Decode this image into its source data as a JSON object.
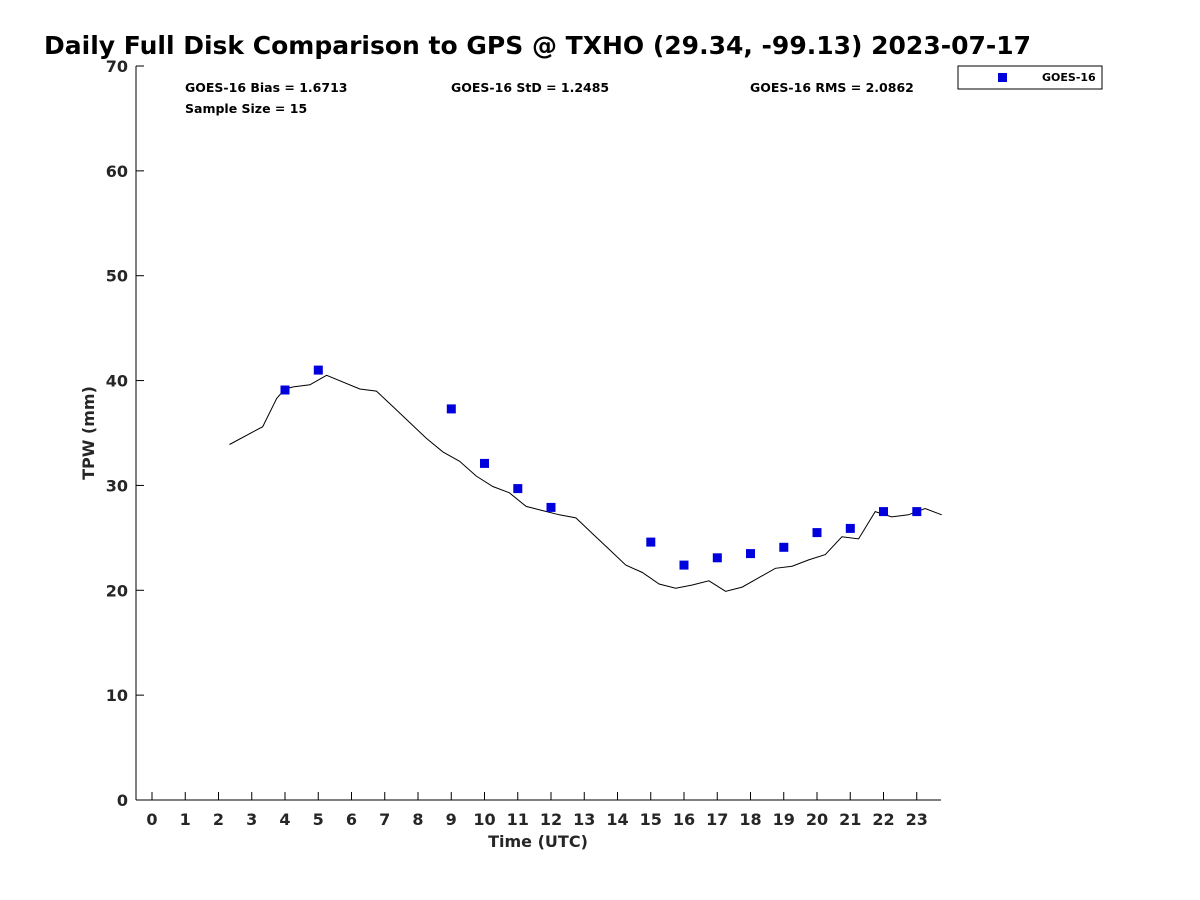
{
  "chart_data": {
    "type": "scatter",
    "title": "Daily Full Disk Comparison to GPS @ TXHO (29.34, -99.13) 2023-07-17",
    "xlabel": "Time (UTC)",
    "ylabel": "TPW (mm)",
    "xlim": [
      -0.5,
      23.75
    ],
    "ylim": [
      0,
      70
    ],
    "x_ticks": [
      "0",
      "1",
      "2",
      "3",
      "4",
      "5",
      "6",
      "7",
      "8",
      "9",
      "10",
      "11",
      "12",
      "13",
      "14",
      "15",
      "16",
      "17",
      "18",
      "19",
      "20",
      "21",
      "22",
      "23"
    ],
    "y_ticks": [
      "0",
      "10",
      "20",
      "30",
      "40",
      "50",
      "60",
      "70"
    ],
    "grid": false,
    "legend": {
      "placement": "top-right-outside",
      "entries": [
        "GOES-16"
      ]
    },
    "stats": {
      "bias": "GOES-16 Bias = 1.6713",
      "std": "GOES-16 StD = 1.2485",
      "rms": "GOES-16 RMS = 2.0862",
      "sample_size": "Sample Size = 15"
    },
    "series": [
      {
        "name": "GOES-16",
        "style": "scatter",
        "color": "#0000dd",
        "marker": "square",
        "x": [
          4,
          5,
          9,
          10,
          11,
          12,
          15,
          16,
          17,
          18,
          19,
          20,
          21,
          22,
          23
        ],
        "y": [
          39.1,
          41.0,
          37.3,
          32.1,
          29.7,
          27.9,
          24.6,
          22.4,
          23.1,
          23.5,
          24.1,
          25.5,
          25.9,
          27.5,
          27.5
        ]
      },
      {
        "style": "line",
        "color": "#000000",
        "x": [
          2.33,
          3.33,
          3.75,
          4.0,
          4.25,
          4.75,
          5.25,
          6.25,
          6.75,
          7.25,
          7.75,
          8.25,
          8.75,
          9.25,
          9.75,
          10.25,
          10.75,
          11.25,
          11.75,
          12.25,
          12.75,
          13.25,
          13.75,
          14.25,
          14.75,
          15.25,
          15.75,
          16.25,
          16.75,
          17.25,
          17.75,
          18.25,
          18.75,
          19.25,
          19.75,
          20.25,
          20.75,
          21.25,
          21.75,
          22.25,
          22.75,
          23.25,
          23.75
        ],
        "y": [
          33.9,
          35.6,
          38.3,
          39.2,
          39.4,
          39.6,
          40.5,
          39.2,
          39.0,
          37.5,
          36.0,
          34.5,
          33.2,
          32.3,
          30.9,
          29.9,
          29.3,
          28.0,
          27.6,
          27.2,
          26.9,
          25.4,
          23.9,
          22.4,
          21.7,
          20.6,
          20.2,
          20.5,
          20.9,
          19.9,
          20.3,
          21.2,
          22.1,
          22.3,
          22.9,
          23.4,
          25.1,
          24.9,
          27.5,
          27.0,
          27.2,
          27.8,
          27.2
        ]
      }
    ]
  }
}
